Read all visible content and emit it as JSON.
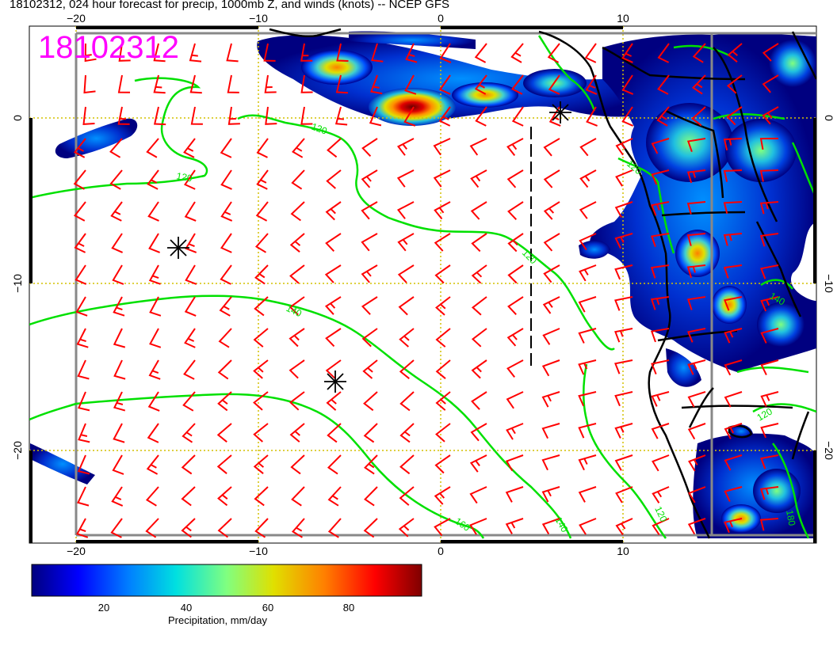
{
  "title": "18102312, 024 hour forecast for precip, 1000mb Z, and winds (knots) -- NCEP GFS",
  "stamp": "18102312",
  "map": {
    "x_ticks": [
      "−20",
      "−10",
      "0",
      "10"
    ],
    "y_ticks": [
      "0",
      "−10",
      "−20"
    ],
    "contour_labels": [
      "120",
      "120",
      "120",
      "140",
      "160",
      "140",
      "120",
      "120",
      "140",
      "120",
      "180"
    ],
    "colors": {
      "wind_barb": "#ff0000",
      "height_contour": "#00e000",
      "coastline": "#000000",
      "graticule": "#d4c000",
      "frame": "#888888"
    }
  },
  "colorbar": {
    "label": "Precipitation, mm/day",
    "ticks": [
      "20",
      "40",
      "60",
      "80"
    ],
    "range": [
      0,
      100
    ],
    "colors": [
      "#00007f",
      "#0000ff",
      "#0080ff",
      "#00e0e0",
      "#80ff80",
      "#e0e000",
      "#ff8000",
      "#ff0000",
      "#7f0000"
    ]
  }
}
